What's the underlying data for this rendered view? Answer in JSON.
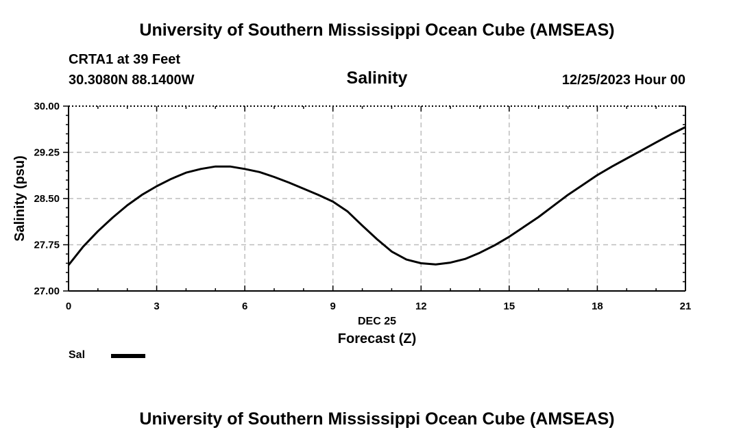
{
  "header": {
    "title_top": "University of Southern Mississippi Ocean Cube (AMSEAS)",
    "station": "CRTA1 at 39 Feet",
    "coords": "30.3080N  88.1400W",
    "datetime": "12/25/2023 Hour 00",
    "title_bottom": "University of Southern Mississippi Ocean Cube (AMSEAS)"
  },
  "legend": {
    "label": "Sal",
    "color": "#000000"
  },
  "chart_data": {
    "type": "line",
    "title": "Salinity",
    "xlabel": "Forecast (Z)",
    "xlabel_date": "DEC 25",
    "ylabel": "Salinity (psu)",
    "xlim": [
      0,
      21
    ],
    "ylim": [
      27.0,
      30.0
    ],
    "xticks": [
      0,
      3,
      6,
      9,
      12,
      15,
      18,
      21
    ],
    "yticks": [
      27.0,
      27.75,
      28.5,
      29.25,
      30.0
    ],
    "ytick_labels": [
      "27.00",
      "27.75",
      "28.50",
      "29.25",
      "30.00"
    ],
    "grid": true,
    "series": [
      {
        "name": "Sal",
        "color": "#000000",
        "x": [
          0,
          0.5,
          1,
          1.5,
          2,
          2.5,
          3,
          3.5,
          4,
          4.5,
          5,
          5.5,
          6,
          6.5,
          7,
          7.5,
          8,
          8.5,
          9,
          9.5,
          10,
          10.5,
          11,
          11.5,
          12,
          12.5,
          13,
          13.5,
          14,
          14.5,
          15,
          15.5,
          16,
          16.5,
          17,
          17.5,
          18,
          18.5,
          19,
          19.5,
          20,
          20.5,
          21
        ],
        "values": [
          27.42,
          27.72,
          27.97,
          28.19,
          28.39,
          28.56,
          28.7,
          28.82,
          28.92,
          28.98,
          29.02,
          29.02,
          28.98,
          28.93,
          28.85,
          28.76,
          28.66,
          28.56,
          28.45,
          28.29,
          28.06,
          27.84,
          27.64,
          27.51,
          27.45,
          27.43,
          27.46,
          27.52,
          27.62,
          27.74,
          27.88,
          28.04,
          28.2,
          28.38,
          28.56,
          28.72,
          28.88,
          29.02,
          29.15,
          29.28,
          29.41,
          29.54,
          29.66
        ]
      }
    ]
  }
}
